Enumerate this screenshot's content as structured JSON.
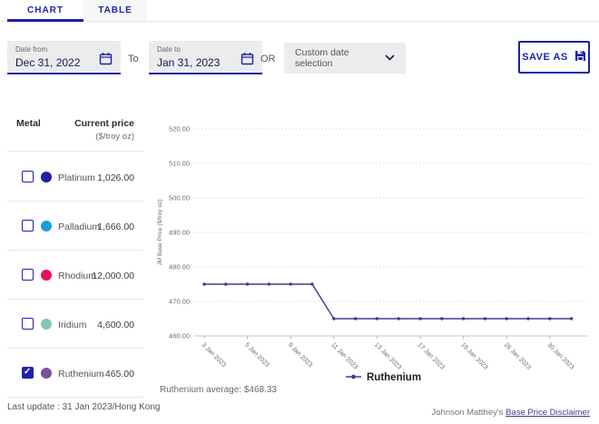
{
  "tabs": {
    "chart": "CHART",
    "table": "TABLE"
  },
  "filters": {
    "date_from": {
      "label": "Date from",
      "value": "Dec 31, 2022"
    },
    "to_label": "To",
    "date_to": {
      "label": "Date to",
      "value": "Jan 31, 2023"
    },
    "or_label": "OR",
    "range_select": {
      "value": "Custom date selection"
    },
    "save_as_label": "SAVE AS"
  },
  "metals": {
    "header": {
      "metal": "Metal",
      "price_line1": "Current price",
      "price_line2": "($/troy oz)"
    },
    "items": [
      {
        "name": "Platinum",
        "price": "1,026.00",
        "color": "#1e22aa",
        "checked": false
      },
      {
        "name": "Palladium",
        "price": "1,666.00",
        "color": "#189dd9",
        "checked": false
      },
      {
        "name": "Rhodium",
        "price": "12,000.00",
        "color": "#e8105f",
        "checked": false
      },
      {
        "name": "Iridium",
        "price": "4,600.00",
        "color": "#85c7b2",
        "checked": false
      },
      {
        "name": "Ruthenium",
        "price": "465.00",
        "color": "#7a519f",
        "checked": true
      }
    ],
    "last_update": "Last update : 31 Jan 2023/Hong Kong"
  },
  "chart_data": {
    "type": "line",
    "x": [
      "3 Jan 2023",
      "4 Jan 2023",
      "5 Jan 2023",
      "6 Jan 2023",
      "9 Jan 2023",
      "10 Jan 2023",
      "11 Jan 2023",
      "12 Jan 2023",
      "13 Jan 2023",
      "16 Jan 2023",
      "17 Jan 2023",
      "18 Jan 2023",
      "19 Jan 2023",
      "20 Jan 2023",
      "26 Jan 2023",
      "27 Jan 2023",
      "30 Jan 2023",
      "31 Jan 2023"
    ],
    "x_tick_indices": [
      0,
      2,
      4,
      6,
      8,
      10,
      12,
      14,
      16
    ],
    "series": [
      {
        "name": "Ruthenium",
        "color": "#53338f",
        "values": [
          475,
          475,
          475,
          475,
          475,
          475,
          465,
          465,
          465,
          465,
          465,
          465,
          465,
          465,
          465,
          465,
          465,
          465
        ]
      }
    ],
    "ylabel": "JM Base Price ($/troy oz)",
    "ylim": [
      460,
      520
    ],
    "y_tick_step": 10,
    "grid": true,
    "legend_position": "bottom",
    "legend_label": "Ruthenium",
    "average_note": "Ruthenium average: $468.33"
  },
  "footer": {
    "prefix": "Johnson Matthey's ",
    "link": "Base Price Disclaimer"
  },
  "colors": {
    "accent": "#1e22aa",
    "grid": "#d8d8dc",
    "axis_text": "#6c6c71"
  }
}
